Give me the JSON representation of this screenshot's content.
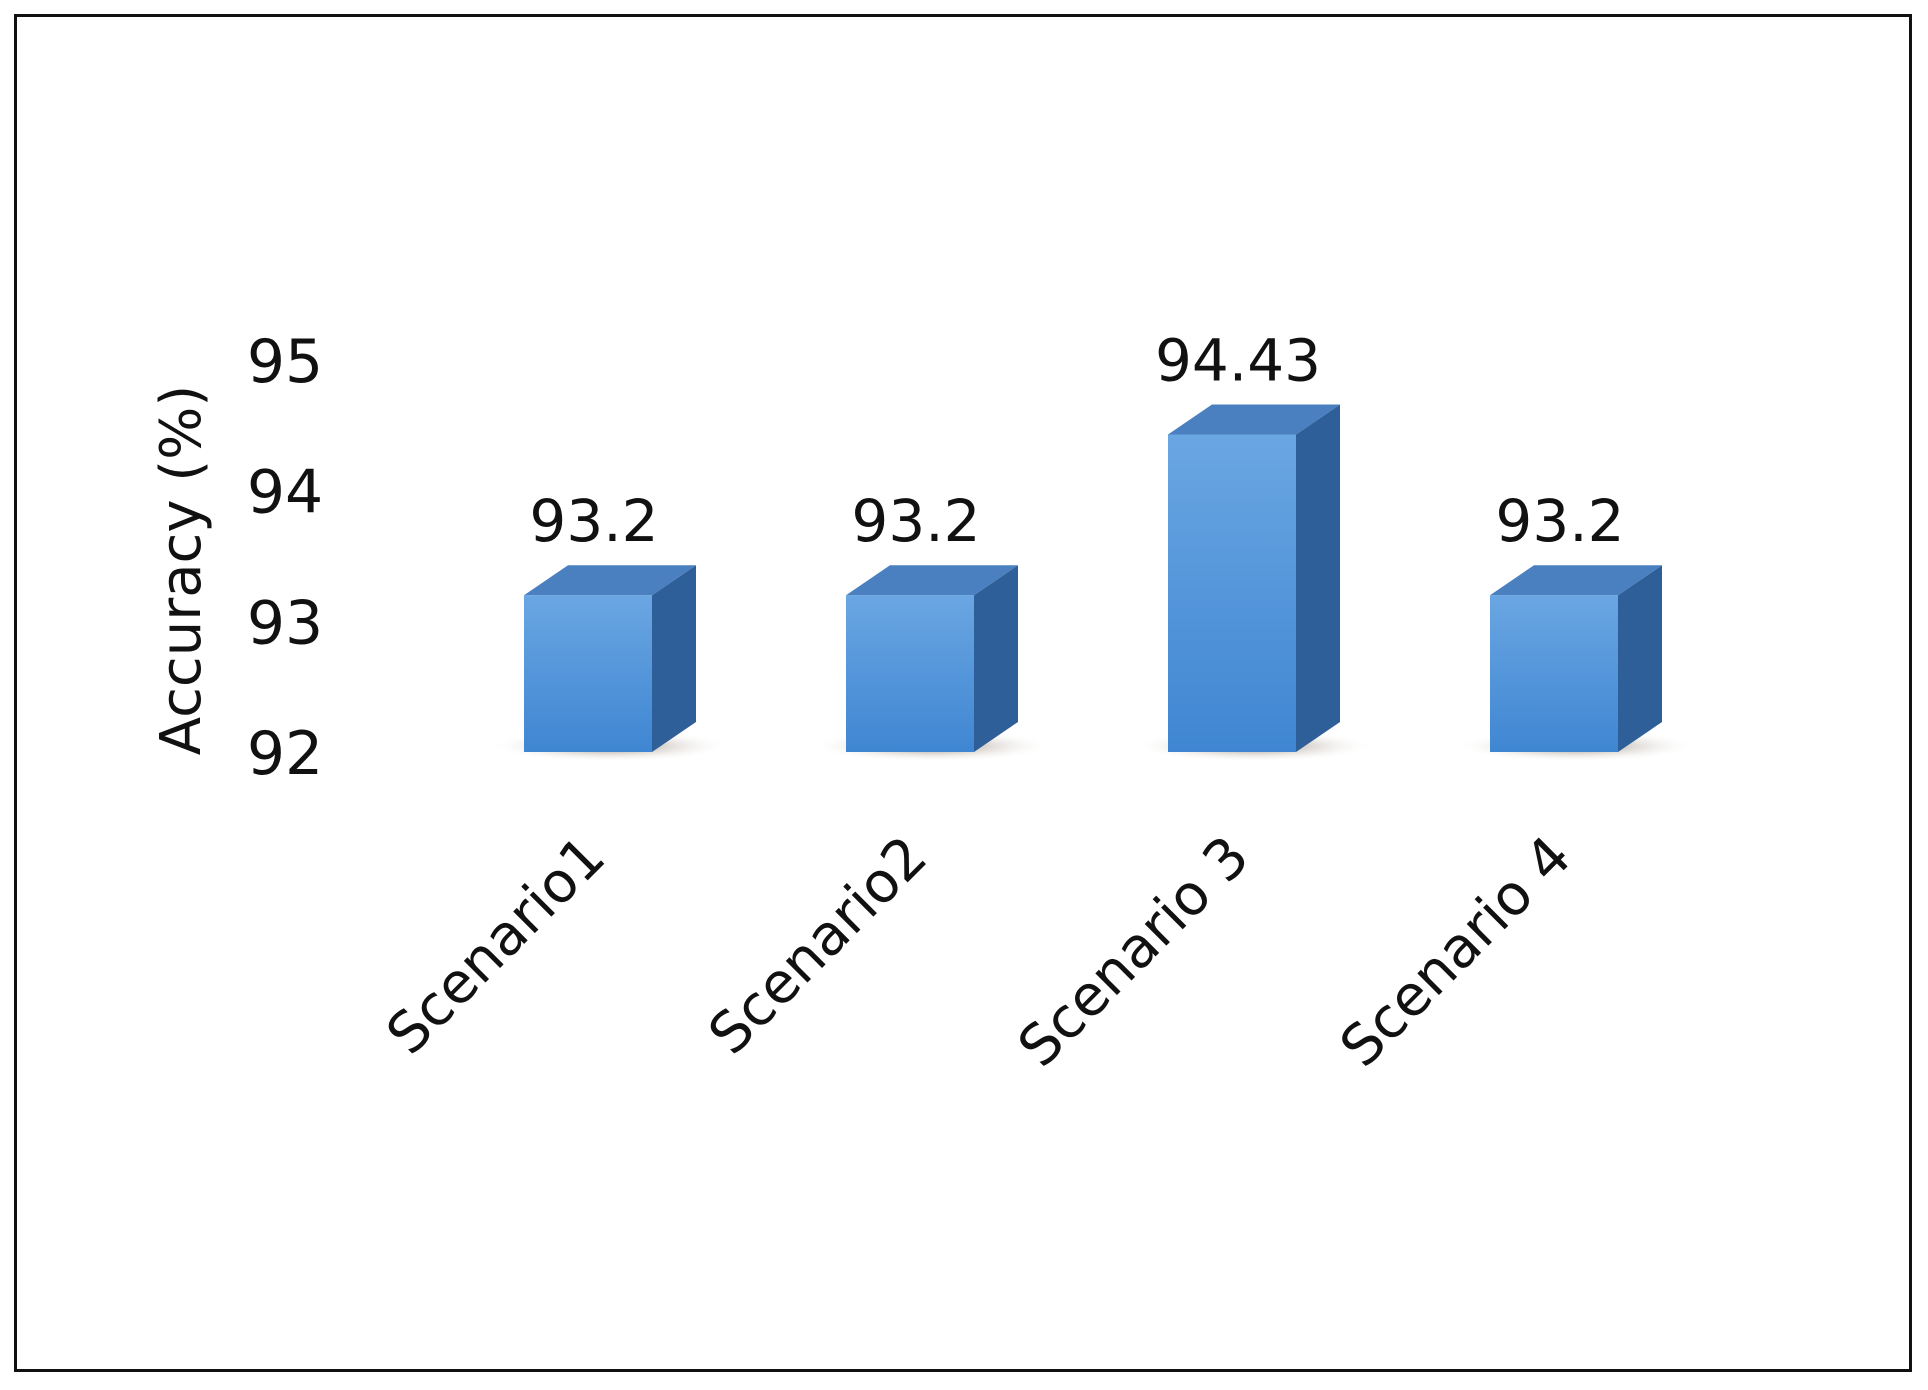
{
  "chart_data": {
    "type": "bar",
    "style": "3d-column",
    "categories": [
      "Scenario1",
      "Scenario2",
      "Scenario 3",
      "Scenario 4"
    ],
    "values": [
      93.2,
      93.2,
      94.43,
      93.2
    ],
    "data_labels": [
      "93.2",
      "93.2",
      "94.43",
      "93.2"
    ],
    "title": "",
    "xlabel": "",
    "ylabel": "Accuracy (%)",
    "ylim": [
      92,
      95
    ],
    "yticks": [
      "92",
      "93",
      "94",
      "95"
    ],
    "grid": false,
    "legend": "none",
    "colors": {
      "front": "#4a8fd6",
      "front_light": "#6aa6e2",
      "top": "#4a7fc0",
      "side": "#2f5f98",
      "shadow": "#9a8a78"
    }
  }
}
